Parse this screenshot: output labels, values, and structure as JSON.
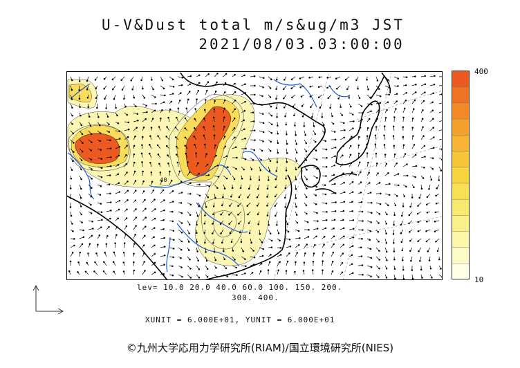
{
  "title": "U-V&Dust total m/s&ug/m3 JST",
  "datetime": "2021/08/03.03:00:00",
  "colorbar": {
    "max_label": "400",
    "min_label": "10",
    "colors": [
      "#ffffe6",
      "#fdfbc8",
      "#fbf6a8",
      "#faf08a",
      "#f9e96e",
      "#f8e052",
      "#f8d43e",
      "#f7c537",
      "#f6b432",
      "#f5a02d",
      "#f38a28",
      "#f07223",
      "#ec5a1f"
    ]
  },
  "levels_line1": "lev= 10.0 20.0 40.0 60.0 100. 150. 200.",
  "levels_line2": "300. 400.",
  "units_line": "XUNIT = 6.000E+01, YUNIT = 6.000E+01",
  "copyright": "©九州大学応用力学研究所(RIAM)/国立環境研究所(NIES)",
  "contour_label": "40",
  "colors": {
    "coast": "#000000",
    "river": "#1a5adc",
    "grid": "#888888",
    "dust_low": "#fbf6b0",
    "dust_mid": "#f8d43e",
    "dust_high": "#ec5a1f"
  }
}
